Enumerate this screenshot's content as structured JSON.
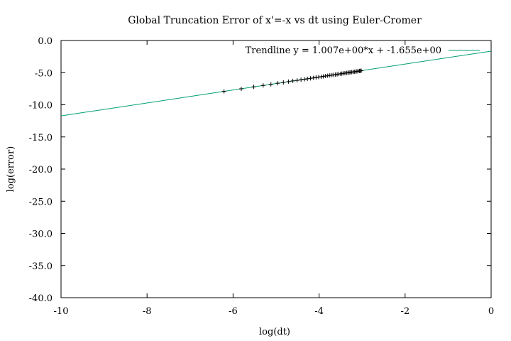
{
  "chart_data": {
    "type": "scatter",
    "title": "Global Truncation Error of x'=-x vs dt using Euler-Cromer",
    "xlabel": "log(dt)",
    "ylabel": "log(error)",
    "xlim": [
      -10,
      0
    ],
    "ylim": [
      -40,
      0
    ],
    "x_ticks": [
      -10,
      -8,
      -6,
      -4,
      -2,
      0
    ],
    "x_tick_labels": [
      "-10",
      "-8",
      "-6",
      "-4",
      "-2",
      "0"
    ],
    "y_ticks": [
      0,
      -5,
      -10,
      -15,
      -20,
      -25,
      -30,
      -35,
      -40
    ],
    "y_tick_labels": [
      "0.0",
      "-5.0",
      "-10.0",
      "-15.0",
      "-20.0",
      "-25.0",
      "-30.0",
      "-35.0",
      "-40.0"
    ],
    "grid": false,
    "legend": "top-right",
    "trendline": {
      "label": "Trendline y = 1.007e+00*x + -1.655e+00",
      "slope": 1.007,
      "intercept": -1.655,
      "color": "#009e73"
    },
    "series": [
      {
        "marker": "plus",
        "color": "#000000",
        "x": [
          -6.21,
          -5.81,
          -5.52,
          -5.3,
          -5.12,
          -4.96,
          -4.83,
          -4.71,
          -4.61,
          -4.51,
          -4.42,
          -4.34,
          -4.27,
          -4.2,
          -4.13,
          -4.07,
          -4.01,
          -3.95,
          -3.9,
          -3.85,
          -3.8,
          -3.75,
          -3.7,
          -3.66,
          -3.62,
          -3.58,
          -3.54,
          -3.5,
          -3.47,
          -3.43,
          -3.4,
          -3.36,
          -3.33,
          -3.3,
          -3.27,
          -3.24,
          -3.21,
          -3.18,
          -3.15,
          -3.12,
          -3.09,
          -3.06,
          -3.04,
          -3.02
        ],
        "y": [
          -7.91,
          -7.51,
          -7.21,
          -6.99,
          -6.81,
          -6.65,
          -6.52,
          -6.4,
          -6.29,
          -6.2,
          -6.11,
          -6.03,
          -5.95,
          -5.88,
          -5.81,
          -5.75,
          -5.69,
          -5.63,
          -5.58,
          -5.53,
          -5.48,
          -5.43,
          -5.38,
          -5.34,
          -5.3,
          -5.26,
          -5.22,
          -5.18,
          -5.15,
          -5.11,
          -5.08,
          -5.04,
          -5.01,
          -4.98,
          -4.95,
          -4.92,
          -4.89,
          -4.86,
          -4.83,
          -4.8,
          -4.77,
          -4.74,
          -4.72,
          -4.7
        ]
      }
    ]
  }
}
